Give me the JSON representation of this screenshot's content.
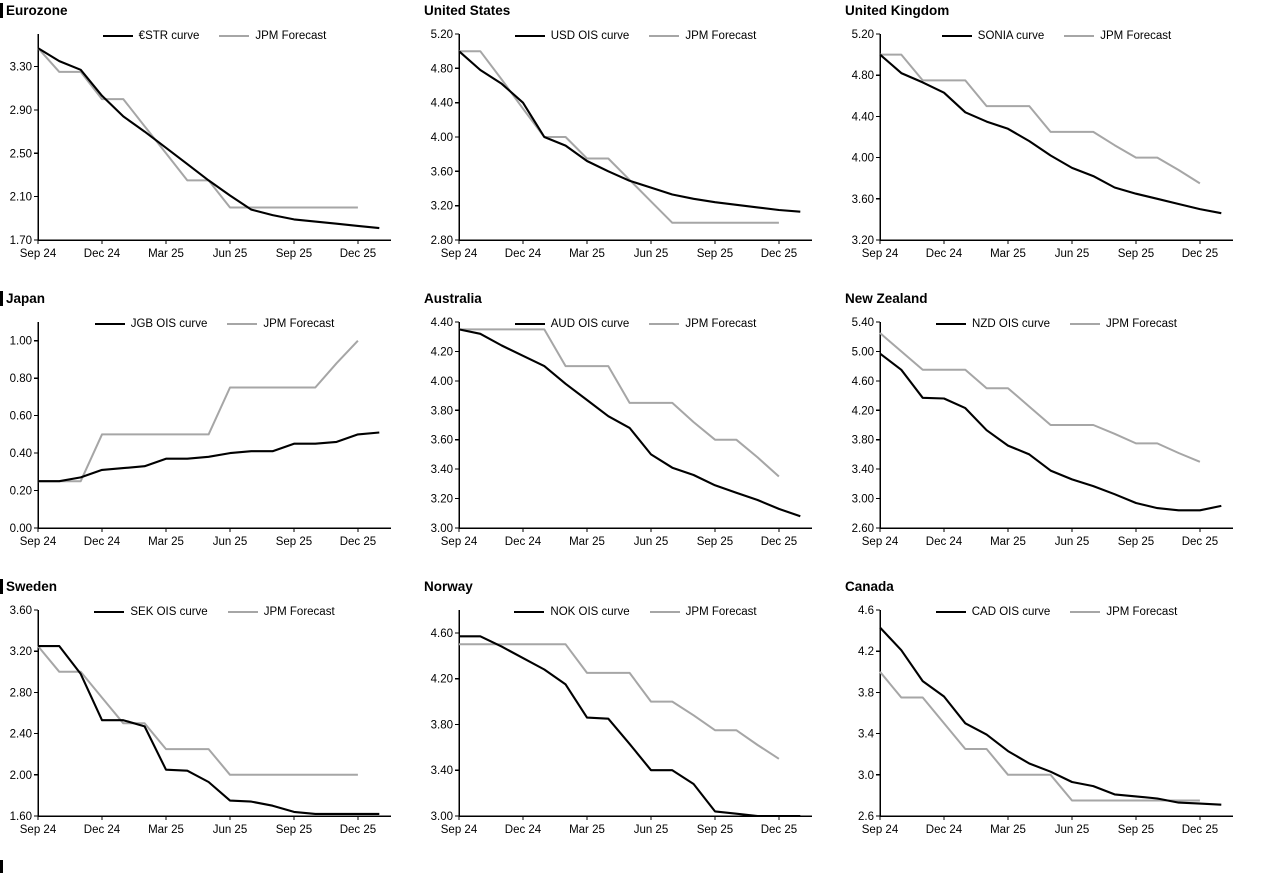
{
  "colors": {
    "series_black": "#000000",
    "series_gray": "#a6a6a6",
    "axis": "#000000",
    "background": "#ffffff"
  },
  "x_axis": {
    "tick_labels": [
      "Sep 24",
      "Dec 24",
      "Mar 25",
      "Jun 25",
      "Sep 25",
      "Dec 25"
    ],
    "tick_months": [
      0,
      3,
      6,
      9,
      12,
      15
    ],
    "note": "series values are monthly, index 0 = Sep 24"
  },
  "chart_data": [
    {
      "type": "line",
      "title": "Eurozone",
      "ylim": [
        1.7,
        3.6
      ],
      "yticks": [
        1.7,
        2.1,
        2.5,
        2.9,
        3.3
      ],
      "ytick_decimals": 2,
      "legend_position": "top-center",
      "grid": false,
      "series": [
        {
          "name": "€STR curve",
          "color": "#000000",
          "values": [
            3.47,
            3.35,
            3.27,
            3.03,
            2.84,
            2.7,
            2.55,
            2.4,
            2.25,
            2.11,
            1.98,
            1.93,
            1.89,
            1.87,
            1.85,
            1.83,
            1.81
          ]
        },
        {
          "name": "JPM Forecast",
          "color": "#a6a6a6",
          "values": [
            3.47,
            3.25,
            3.25,
            3.0,
            3.0,
            2.75,
            2.5,
            2.25,
            2.25,
            2.0,
            2.0,
            2.0,
            2.0,
            2.0,
            2.0,
            2.0
          ]
        }
      ]
    },
    {
      "type": "line",
      "title": "United States",
      "ylim": [
        2.8,
        5.2
      ],
      "yticks": [
        2.8,
        3.2,
        3.6,
        4.0,
        4.4,
        4.8,
        5.2
      ],
      "ytick_decimals": 2,
      "legend_position": "top-center",
      "grid": false,
      "series": [
        {
          "name": "USD OIS curve",
          "color": "#000000",
          "values": [
            5.0,
            4.78,
            4.62,
            4.4,
            4.0,
            3.9,
            3.72,
            3.6,
            3.49,
            3.41,
            3.33,
            3.28,
            3.24,
            3.21,
            3.18,
            3.15,
            3.13
          ]
        },
        {
          "name": "JPM Forecast",
          "color": "#a6a6a6",
          "values": [
            5.0,
            5.0,
            4.67,
            4.33,
            4.0,
            4.0,
            3.75,
            3.75,
            3.5,
            3.25,
            3.0,
            3.0,
            3.0,
            3.0,
            3.0,
            3.0
          ]
        }
      ]
    },
    {
      "type": "line",
      "title": "United Kingdom",
      "ylim": [
        3.2,
        5.2
      ],
      "yticks": [
        3.2,
        3.6,
        4.0,
        4.4,
        4.8,
        5.2
      ],
      "ytick_decimals": 2,
      "legend_position": "top-center",
      "grid": false,
      "series": [
        {
          "name": "SONIA curve",
          "color": "#000000",
          "values": [
            5.0,
            4.82,
            4.73,
            4.63,
            4.44,
            4.35,
            4.28,
            4.16,
            4.02,
            3.9,
            3.82,
            3.71,
            3.65,
            3.6,
            3.55,
            3.5,
            3.46
          ]
        },
        {
          "name": "JPM Forecast",
          "color": "#a6a6a6",
          "values": [
            5.0,
            5.0,
            4.75,
            4.75,
            4.75,
            4.5,
            4.5,
            4.5,
            4.25,
            4.25,
            4.25,
            4.12,
            4.0,
            4.0,
            3.88,
            3.75
          ]
        }
      ]
    },
    {
      "type": "line",
      "title": "Japan",
      "ylim": [
        0.0,
        1.1
      ],
      "yticks": [
        0.0,
        0.2,
        0.4,
        0.6,
        0.8,
        1.0
      ],
      "ytick_decimals": 2,
      "legend_position": "top-center",
      "grid": false,
      "series": [
        {
          "name": "JGB OIS curve",
          "color": "#000000",
          "values": [
            0.25,
            0.25,
            0.27,
            0.31,
            0.32,
            0.33,
            0.37,
            0.37,
            0.38,
            0.4,
            0.41,
            0.41,
            0.45,
            0.45,
            0.46,
            0.5,
            0.51
          ]
        },
        {
          "name": "JPM Forecast",
          "color": "#a6a6a6",
          "values": [
            0.25,
            0.25,
            0.25,
            0.5,
            0.5,
            0.5,
            0.5,
            0.5,
            0.5,
            0.75,
            0.75,
            0.75,
            0.75,
            0.75,
            0.88,
            1.0
          ]
        }
      ]
    },
    {
      "type": "line",
      "title": "Australia",
      "ylim": [
        3.0,
        4.4
      ],
      "yticks": [
        3.0,
        3.2,
        3.4,
        3.6,
        3.8,
        4.0,
        4.2,
        4.4
      ],
      "ytick_decimals": 2,
      "legend_position": "top-center",
      "grid": false,
      "series": [
        {
          "name": "AUD OIS curve",
          "color": "#000000",
          "values": [
            4.35,
            4.32,
            4.24,
            4.17,
            4.1,
            3.98,
            3.87,
            3.76,
            3.68,
            3.5,
            3.41,
            3.36,
            3.29,
            3.24,
            3.19,
            3.13,
            3.08
          ]
        },
        {
          "name": "JPM Forecast",
          "color": "#a6a6a6",
          "values": [
            4.35,
            4.35,
            4.35,
            4.35,
            4.35,
            4.1,
            4.1,
            4.1,
            3.85,
            3.85,
            3.85,
            3.72,
            3.6,
            3.6,
            3.48,
            3.35
          ]
        }
      ]
    },
    {
      "type": "line",
      "title": "New Zealand",
      "ylim": [
        2.6,
        5.4
      ],
      "yticks": [
        2.6,
        3.0,
        3.4,
        3.8,
        4.2,
        4.6,
        5.0,
        5.4
      ],
      "ytick_decimals": 2,
      "legend_position": "top-center",
      "grid": false,
      "series": [
        {
          "name": "NZD OIS curve",
          "color": "#000000",
          "values": [
            4.97,
            4.75,
            4.37,
            4.36,
            4.23,
            3.93,
            3.72,
            3.6,
            3.38,
            3.26,
            3.17,
            3.06,
            2.94,
            2.87,
            2.84,
            2.84,
            2.9
          ]
        },
        {
          "name": "JPM Forecast",
          "color": "#a6a6a6",
          "values": [
            5.25,
            5.0,
            4.75,
            4.75,
            4.75,
            4.5,
            4.5,
            4.25,
            4.0,
            4.0,
            4.0,
            3.88,
            3.75,
            3.75,
            3.62,
            3.5
          ]
        }
      ]
    },
    {
      "type": "line",
      "title": "Sweden",
      "ylim": [
        1.6,
        3.6
      ],
      "yticks": [
        1.6,
        2.0,
        2.4,
        2.8,
        3.2,
        3.6
      ],
      "ytick_decimals": 2,
      "legend_position": "top-center",
      "grid": false,
      "series": [
        {
          "name": "SEK OIS curve",
          "color": "#000000",
          "values": [
            3.25,
            3.25,
            2.98,
            2.53,
            2.53,
            2.47,
            2.05,
            2.04,
            1.93,
            1.75,
            1.74,
            1.7,
            1.64,
            1.62,
            1.62,
            1.62,
            1.62
          ]
        },
        {
          "name": "JPM Forecast",
          "color": "#a6a6a6",
          "values": [
            3.25,
            3.0,
            3.0,
            2.75,
            2.5,
            2.5,
            2.25,
            2.25,
            2.25,
            2.0,
            2.0,
            2.0,
            2.0,
            2.0,
            2.0,
            2.0
          ]
        }
      ]
    },
    {
      "type": "line",
      "title": "Norway",
      "ylim": [
        3.0,
        4.8
      ],
      "yticks": [
        3.0,
        3.4,
        3.8,
        4.2,
        4.6
      ],
      "ytick_decimals": 2,
      "legend_position": "top-center",
      "grid": false,
      "series": [
        {
          "name": "NOK OIS curve",
          "color": "#000000",
          "values": [
            4.57,
            4.57,
            4.48,
            4.38,
            4.28,
            4.15,
            3.86,
            3.85,
            3.63,
            3.4,
            3.4,
            3.28,
            3.04,
            3.02,
            3.0,
            3.0,
            3.0
          ]
        },
        {
          "name": "JPM Forecast",
          "color": "#a6a6a6",
          "values": [
            4.5,
            4.5,
            4.5,
            4.5,
            4.5,
            4.5,
            4.25,
            4.25,
            4.25,
            4.0,
            4.0,
            3.88,
            3.75,
            3.75,
            3.62,
            3.5
          ]
        }
      ]
    },
    {
      "type": "line",
      "title": "Canada",
      "ylim": [
        2.6,
        4.6
      ],
      "yticks": [
        2.6,
        3.0,
        3.4,
        3.8,
        4.2,
        4.6
      ],
      "ytick_decimals": 1,
      "legend_position": "top-center",
      "grid": false,
      "series": [
        {
          "name": "CAD OIS curve",
          "color": "#000000",
          "values": [
            4.43,
            4.21,
            3.91,
            3.76,
            3.5,
            3.39,
            3.23,
            3.11,
            3.03,
            2.93,
            2.89,
            2.81,
            2.79,
            2.77,
            2.73,
            2.72,
            2.71
          ]
        },
        {
          "name": "JPM Forecast",
          "color": "#a6a6a6",
          "values": [
            4.0,
            3.75,
            3.75,
            3.5,
            3.25,
            3.25,
            3.0,
            3.0,
            3.0,
            2.75,
            2.75,
            2.75,
            2.75,
            2.75,
            2.75,
            2.75
          ]
        }
      ]
    }
  ]
}
